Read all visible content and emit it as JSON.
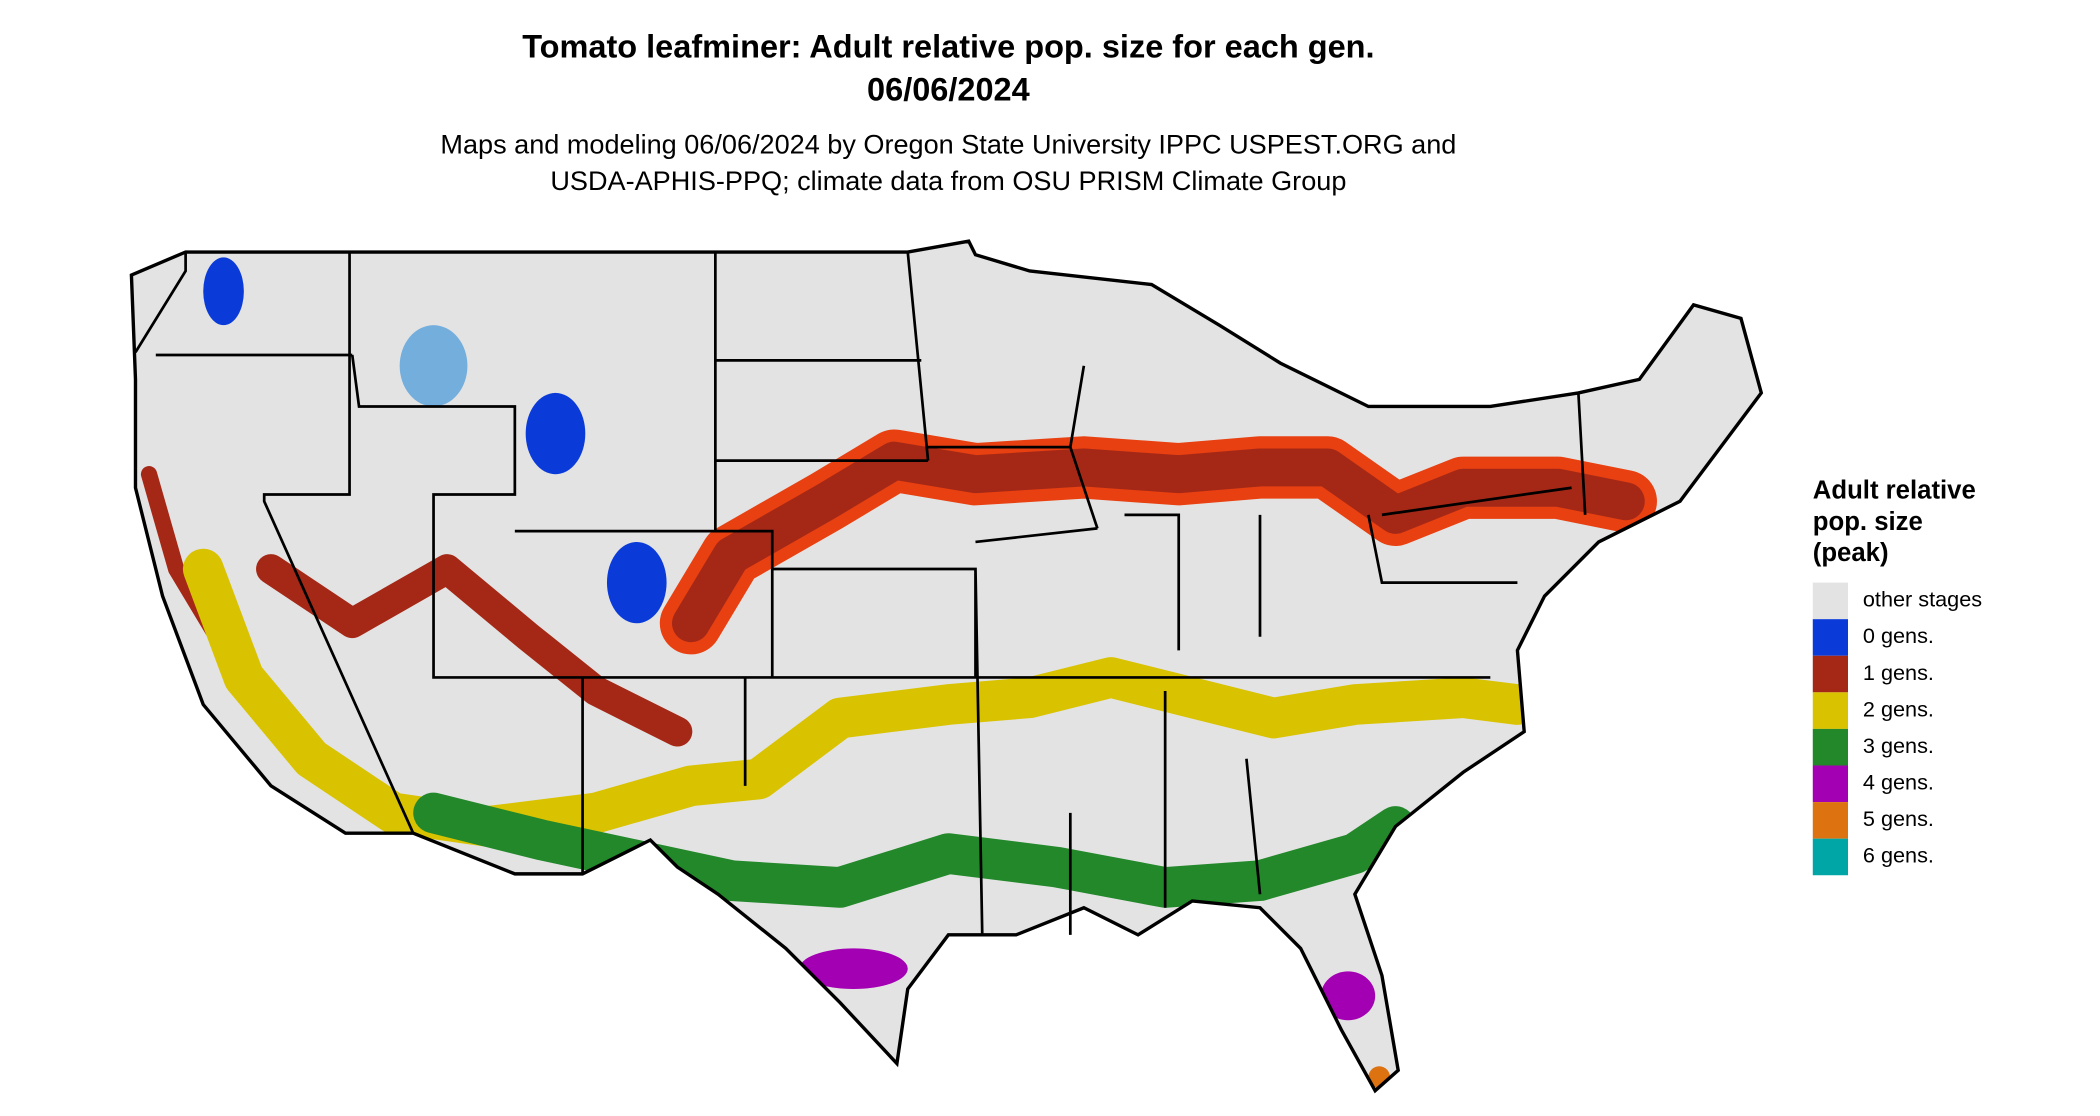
{
  "title": [
    "Tomato leafminer: Adult relative pop. size for each gen.",
    "06/06/2024"
  ],
  "subtitle": [
    "Maps and modeling 06/06/2024 by Oregon State University IPPC USPEST.ORG and",
    "USDA-APHIS-PPQ; climate data from OSU PRISM Climate Group"
  ],
  "legend": {
    "title": [
      "Adult relative",
      "pop. size",
      "(peak)"
    ],
    "items": [
      {
        "name": "other stages",
        "color": "#e3e3e3"
      },
      {
        "name": "0 gens.",
        "color": "#0a3bd9"
      },
      {
        "name": "1 gens.",
        "color": "#a52817"
      },
      {
        "name": "2 gens.",
        "color": "#d9c200"
      },
      {
        "name": "3 gens.",
        "color": "#22882a"
      },
      {
        "name": "4 gens.",
        "color": "#a400b3"
      },
      {
        "name": "5 gens.",
        "color": "#dc7210"
      },
      {
        "name": "6 gens.",
        "color": "#00a6a6"
      }
    ]
  }
}
